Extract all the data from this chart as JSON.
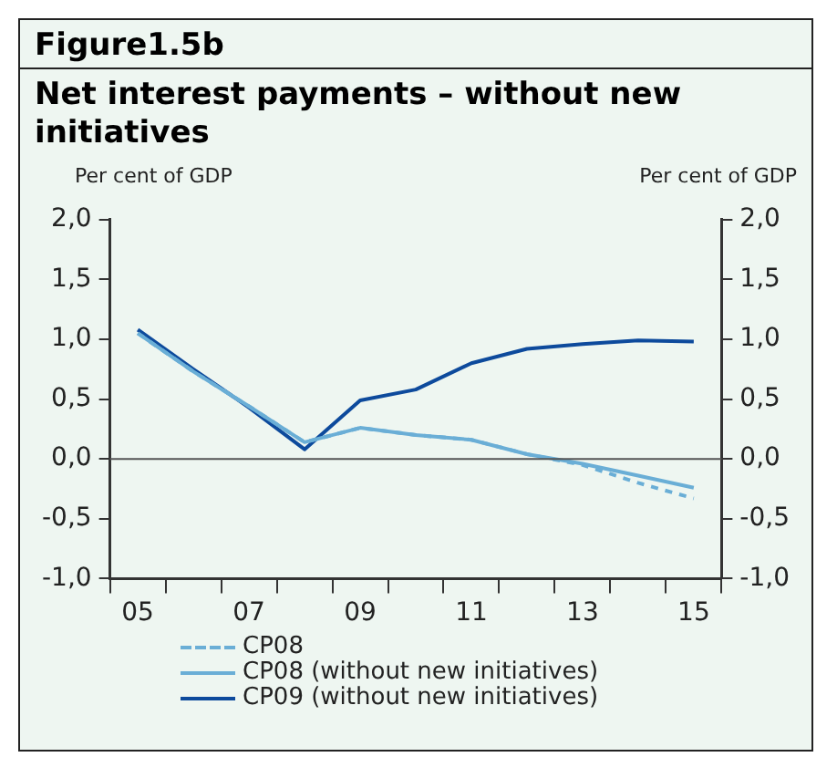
{
  "chart_data": {
    "type": "line",
    "title": "Figure1.5b",
    "subtitle": "Net interest payments – without new initiatives",
    "ylabel": "Per cent of GDP",
    "y2label": "Per cent of GDP",
    "categories": [
      "05",
      null,
      "07",
      null,
      "09",
      null,
      "11",
      null,
      "13",
      null,
      "15"
    ],
    "series": [
      {
        "name": "CP08",
        "color": "#6aaed6",
        "line_style": "dashed",
        "values": [
          1.05,
          0.73,
          0.44,
          0.14,
          0.26,
          0.2,
          0.16,
          0.04,
          -0.05,
          -0.2,
          -0.33
        ]
      },
      {
        "name": "CP08 (without new initiatives)",
        "color": "#6aaed6",
        "line_style": "solid",
        "values": [
          1.05,
          0.73,
          0.44,
          0.14,
          0.26,
          0.2,
          0.16,
          0.04,
          -0.04,
          -0.14,
          -0.24
        ]
      },
      {
        "name": "CP09 (without new initiatives)",
        "color": "#0d4a9c",
        "line_style": "solid",
        "values": [
          1.08,
          0.75,
          0.43,
          0.08,
          0.49,
          0.58,
          0.8,
          0.92,
          0.96,
          0.99,
          0.98
        ]
      }
    ],
    "ylim": [
      -1,
      2
    ],
    "yticks": [
      {
        "value": -1,
        "label": "-1,0"
      },
      {
        "value": -0.5,
        "label": "-0,5"
      },
      {
        "value": 0,
        "label": "0,0"
      },
      {
        "value": 0.5,
        "label": "0,5"
      },
      {
        "value": 1,
        "label": "1,0"
      },
      {
        "value": 1.5,
        "label": "1,5"
      },
      {
        "value": 2,
        "label": "2,0"
      }
    ],
    "y2lim": [
      -1,
      2
    ],
    "y2ticks": [
      {
        "value": -1,
        "label": "-1,0"
      },
      {
        "value": -0.5,
        "label": "-0,5"
      },
      {
        "value": 0,
        "label": "0,0"
      },
      {
        "value": 0.5,
        "label": "0,5"
      },
      {
        "value": 1,
        "label": "1,0"
      },
      {
        "value": 1.5,
        "label": "1,5"
      },
      {
        "value": 2,
        "label": "2,0"
      }
    ],
    "ref_lines": [
      {
        "axis": "y",
        "value": 0,
        "color": "#555555"
      }
    ],
    "grid": false,
    "legend": "bottom",
    "marker": "none"
  }
}
